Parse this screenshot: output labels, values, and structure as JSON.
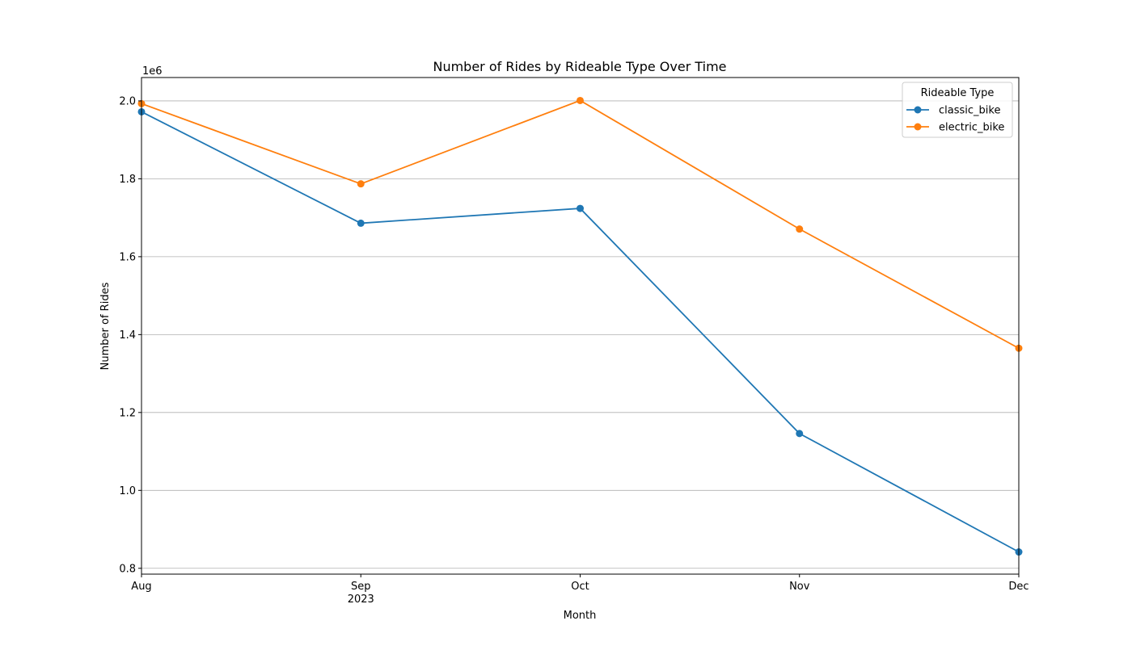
{
  "chart_data": {
    "type": "line",
    "title": "Number of Rides by Rideable Type Over Time",
    "xlabel": "Month",
    "ylabel": "Number of Rides",
    "y_offset_label": "1e6",
    "x": [
      "Aug",
      "Sep",
      "Oct",
      "Nov",
      "Dec"
    ],
    "x_sublabel": {
      "Sep": "2023"
    },
    "y_ticks": [
      "0.8",
      "1.0",
      "1.2",
      "1.4",
      "1.6",
      "1.8",
      "2.0"
    ],
    "ylim": [
      0.785,
      2.06
    ],
    "y_scale_note": "values in millions",
    "grid": "y",
    "legend": {
      "title": "Rideable Type",
      "placement": "top-right"
    },
    "series": [
      {
        "name": "classic_bike",
        "color": "#1f77b4",
        "values": [
          1.972,
          1.686,
          1.724,
          1.146,
          0.842
        ]
      },
      {
        "name": "electric_bike",
        "color": "#ff7f0e",
        "values": [
          1.993,
          1.787,
          2.001,
          1.671,
          1.365
        ]
      }
    ]
  }
}
